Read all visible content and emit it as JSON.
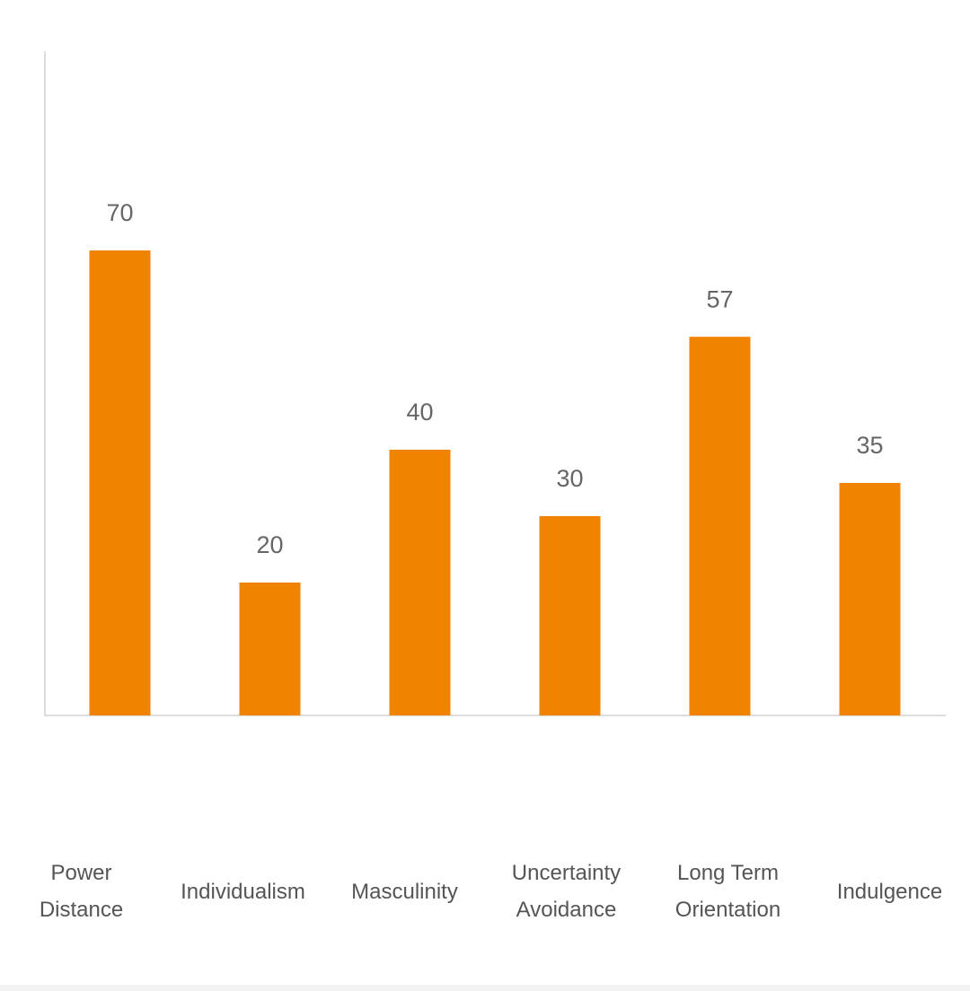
{
  "chart_data": {
    "type": "bar",
    "categories": [
      "Power Distance",
      "Individualism",
      "Masculinity",
      "Uncertainty Avoidance",
      "Long Term Orientation",
      "Indulgence"
    ],
    "values": [
      70,
      20,
      40,
      30,
      57,
      35
    ],
    "color": "#f08300",
    "ylim": [
      0,
      100
    ]
  }
}
